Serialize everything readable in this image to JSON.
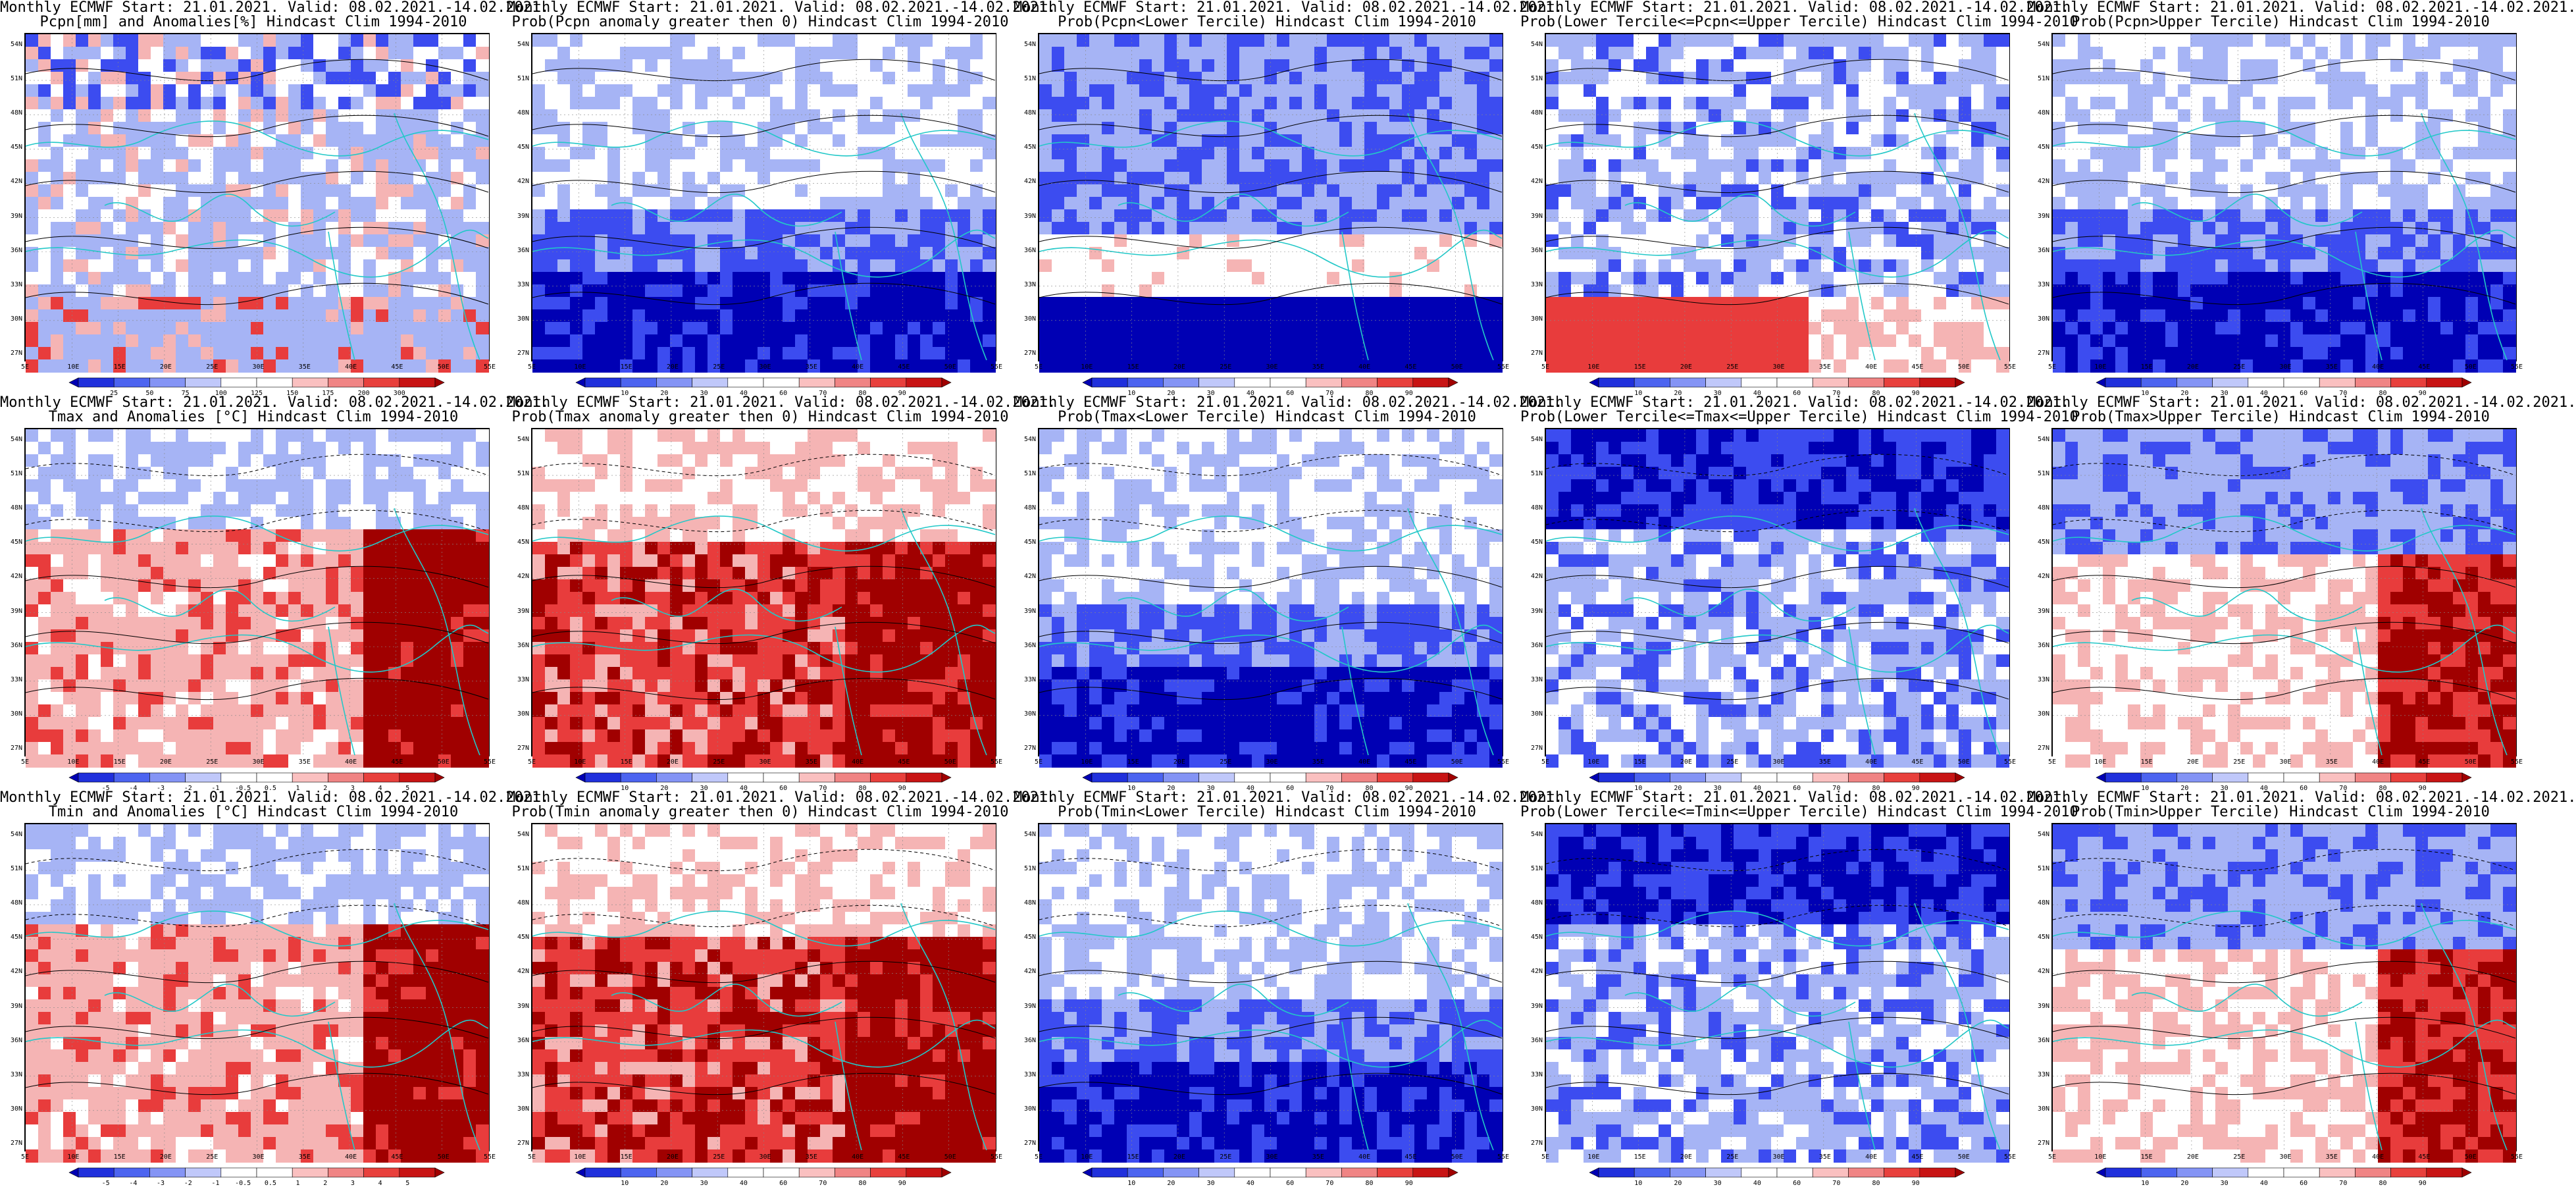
{
  "rows": [
    {
      "variable": "Pcpn",
      "panels": [
        {
          "line1": "Monthly ECMWF Start: 21.01.2021. Valid: 08.02.2021.-14.02.2021.",
          "line2": "Pcpn[mm] and Anomalies[%] Hindcast Clim 1994-2010",
          "scheme": "anom_precip",
          "colorbar": [
            "25",
            "50",
            "75",
            "100",
            "125",
            "150",
            "175",
            "200",
            "300"
          ]
        },
        {
          "line1": "Monthly ECMWF Start: 21.01.2021. Valid: 08.02.2021.-14.02.2021.",
          "line2": "Prob(Pcpn anomaly greater then 0) Hindcast Clim 1994-2010",
          "scheme": "prob_low",
          "colorbar": [
            "10",
            "20",
            "30",
            "40",
            "60",
            "70",
            "80",
            "90"
          ]
        },
        {
          "line1": "Monthly ECMWF Start: 21.01.2021. Valid: 08.02.2021.-14.02.2021.",
          "line2": "Prob(Pcpn<Lower Tercile) Hindcast Clim 1994-2010",
          "scheme": "prob_low_mixed",
          "colorbar": [
            "10",
            "20",
            "30",
            "40",
            "60",
            "70",
            "80",
            "90"
          ]
        },
        {
          "line1": "Monthly ECMWF Start: 21.01.2021. Valid: 08.02.2021.-14.02.2021.",
          "line2": "Prob(Lower Tercile<=Pcpn<=Upper Tercile) Hindcast Clim 1994-2010",
          "scheme": "prob_mid_red_south",
          "colorbar": [
            "10",
            "20",
            "30",
            "40",
            "60",
            "70",
            "80",
            "90"
          ]
        },
        {
          "line1": "Monthly ECMWF Start: 21.01.2021. Valid: 08.02.2021.-14.02.2021.",
          "line2": "Prob(Pcpn>Upper Tercile) Hindcast Clim 1994-2010",
          "scheme": "prob_low",
          "colorbar": [
            "10",
            "20",
            "30",
            "40",
            "60",
            "70",
            "80",
            "90"
          ]
        }
      ]
    },
    {
      "variable": "Tmax",
      "panels": [
        {
          "line1": "Monthly ECMWF Start: 21.01.2021. Valid: 08.02.2021.-14.02.2021.",
          "line2": "Tmax and Anomalies [°C] Hindcast Clim 1994-2010",
          "scheme": "anom_temp",
          "colorbar": [
            "-5",
            "-4",
            "-3",
            "-2",
            "-1",
            "-0.5",
            "0.5",
            "1",
            "2",
            "3",
            "4",
            "5"
          ]
        },
        {
          "line1": "Monthly ECMWF Start: 21.01.2021. Valid: 08.02.2021.-14.02.2021.",
          "line2": "Prob(Tmax anomaly greater then 0) Hindcast Clim 1994-2010",
          "scheme": "prob_high",
          "colorbar": [
            "10",
            "20",
            "30",
            "40",
            "60",
            "70",
            "80",
            "90"
          ]
        },
        {
          "line1": "Monthly ECMWF Start: 21.01.2021. Valid: 08.02.2021.-14.02.2021.",
          "line2": "Prob(Tmax<Lower Tercile) Hindcast Clim 1994-2010",
          "scheme": "prob_low",
          "colorbar": [
            "10",
            "20",
            "30",
            "40",
            "60",
            "70",
            "80",
            "90"
          ]
        },
        {
          "line1": "Monthly ECMWF Start: 21.01.2021. Valid: 08.02.2021.-14.02.2021.",
          "line2": "Prob(Lower Tercile<=Tmax<=Upper Tercile) Hindcast Clim 1994-2010",
          "scheme": "prob_mid",
          "colorbar": [
            "10",
            "20",
            "30",
            "40",
            "60",
            "70",
            "80",
            "90"
          ]
        },
        {
          "line1": "Monthly ECMWF Start: 21.01.2021. Valid: 08.02.2021.-14.02.2021.",
          "line2": "Prob(Tmax>Upper Tercile) Hindcast Clim 1994-2010",
          "scheme": "prob_upper",
          "colorbar": [
            "10",
            "20",
            "30",
            "40",
            "60",
            "70",
            "80",
            "90"
          ]
        }
      ]
    },
    {
      "variable": "Tmin",
      "panels": [
        {
          "line1": "Monthly ECMWF Start: 21.01.2021. Valid: 08.02.2021.-14.02.2021.",
          "line2": "Tmin and Anomalies [°C] Hindcast Clim 1994-2010",
          "scheme": "anom_temp",
          "colorbar": [
            "-5",
            "-4",
            "-3",
            "-2",
            "-1",
            "-0.5",
            "0.5",
            "1",
            "2",
            "3",
            "4",
            "5"
          ]
        },
        {
          "line1": "Monthly ECMWF Start: 21.01.2021. Valid: 08.02.2021.-14.02.2021.",
          "line2": "Prob(Tmin anomaly greater then 0) Hindcast Clim 1994-2010",
          "scheme": "prob_high",
          "colorbar": [
            "10",
            "20",
            "30",
            "40",
            "60",
            "70",
            "80",
            "90"
          ]
        },
        {
          "line1": "Monthly ECMWF Start: 21.01.2021. Valid: 08.02.2021.-14.02.2021.",
          "line2": "Prob(Tmin<Lower Tercile) Hindcast Clim 1994-2010",
          "scheme": "prob_low",
          "colorbar": [
            "10",
            "20",
            "30",
            "40",
            "60",
            "70",
            "80",
            "90"
          ]
        },
        {
          "line1": "Monthly ECMWF Start: 21.01.2021. Valid: 08.02.2021.-14.02.2021.",
          "line2": "Prob(Lower Tercile<=Tmin<=Upper Tercile) Hindcast Clim 1994-2010",
          "scheme": "prob_mid",
          "colorbar": [
            "10",
            "20",
            "30",
            "40",
            "60",
            "70",
            "80",
            "90"
          ]
        },
        {
          "line1": "Monthly ECMWF Start: 21.01.2021. Valid: 08.02.2021.-14.02.2021.",
          "line2": "Prob(Tmin>Upper Tercile) Hindcast Clim 1994-2010",
          "scheme": "prob_upper",
          "colorbar": [
            "10",
            "20",
            "30",
            "40",
            "60",
            "70",
            "80",
            "90"
          ]
        }
      ]
    }
  ],
  "lat_labels": [
    "54N",
    "51N",
    "48N",
    "45N",
    "42N",
    "39N",
    "36N",
    "33N",
    "30N",
    "27N"
  ],
  "lon_labels": [
    "5E",
    "10E",
    "15E",
    "20E",
    "25E",
    "30E",
    "35E",
    "40E",
    "45E",
    "50E",
    "55E"
  ],
  "colors": {
    "blue_dark": "#0000b4",
    "blue_mid": "#3c4cf0",
    "blue_light": "#a6b4f5",
    "white": "#ffffff",
    "red_light": "#f5b4b4",
    "red_mid": "#e83c3c",
    "red_dark": "#a00000",
    "coast": "#22c8c8",
    "contour": "#000000"
  }
}
